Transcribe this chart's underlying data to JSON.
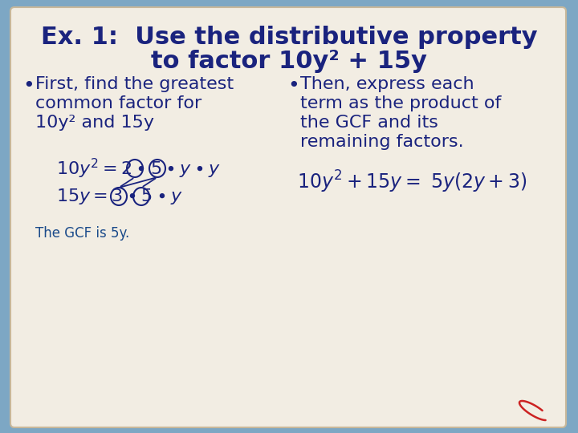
{
  "bg_color": "#7da7c4",
  "paper_color": "#f2ede3",
  "title_line1": "Ex. 1:  Use the distributive property",
  "title_line2": "to factor 10y² + 15y",
  "title_color": "#1a237e",
  "bullet_color": "#1a237e",
  "bullet1_lines": [
    "First, find the greatest",
    "common factor for",
    "10y² and 15y"
  ],
  "bullet2_lines": [
    "Then, express each",
    "term as the product of",
    "the GCF and its",
    "remaining factors."
  ],
  "gcf_text": "The GCF is 5y.",
  "gcf_color": "#1a4a8a",
  "body_color": "#1a237e",
  "math_color": "#1a237e",
  "circle_color": "#1a237e",
  "eq1_math": "$10y^2 = 2\\bullet 5\\bullet y\\bullet y$",
  "eq2_math": "$15y = 3\\bullet 5\\bullet y$",
  "eq_right": "$10y^2 + 15y = \\ 5y(2y + 3)$"
}
